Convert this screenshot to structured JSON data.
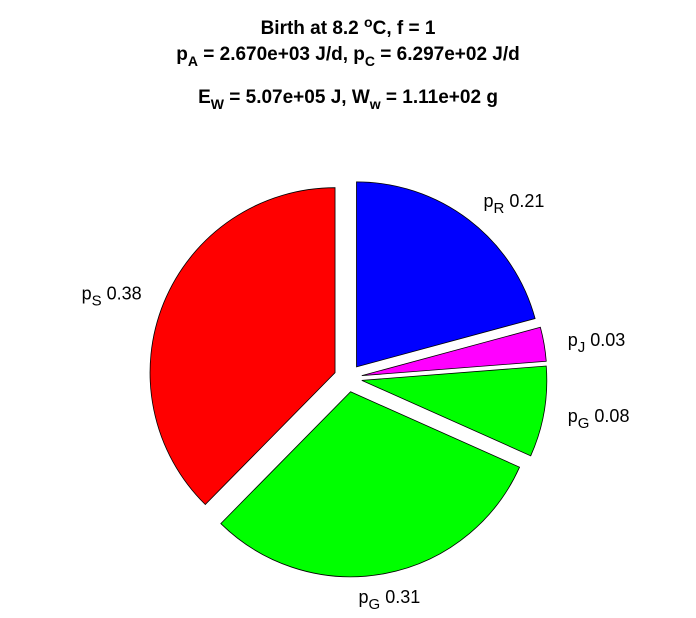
{
  "title": {
    "line1": {
      "prefix": "Birth at 8.2 ",
      "sup": "o",
      "suffix": "C, f = 1"
    },
    "line2": {
      "a_sym": "p",
      "a_sub": "A",
      "a_val": " = 2.670e+03 J/d, ",
      "c_sym": "p",
      "c_sub": "C",
      "c_val": " = 6.297e+02 J/d"
    },
    "line3": {
      "e_sym": "E",
      "e_sub": "W",
      "e_val": " = 5.07e+05 J, ",
      "w_sym": "W",
      "w_sub": "w",
      "w_val": " = 1.11e+02 g"
    }
  },
  "chart_data": {
    "type": "pie",
    "start_angle_deg": 90,
    "direction": "clockwise",
    "exploded": true,
    "slices": [
      {
        "sym": "p",
        "sub": "R",
        "value": 0.21,
        "label": "0.21",
        "color": "#0000ff"
      },
      {
        "sym": "p",
        "sub": "J",
        "value": 0.03,
        "label": "0.03",
        "color": "#ff00ff"
      },
      {
        "sym": "p",
        "sub": "G",
        "value": 0.08,
        "label": "0.08",
        "color": "#00ff00"
      },
      {
        "sym": "p",
        "sub": "G",
        "value": 0.31,
        "label": "0.31",
        "color": "#00ff00"
      },
      {
        "sym": "p",
        "sub": "S",
        "value": 0.38,
        "label": "0.38",
        "color": "#ff0000"
      }
    ]
  }
}
